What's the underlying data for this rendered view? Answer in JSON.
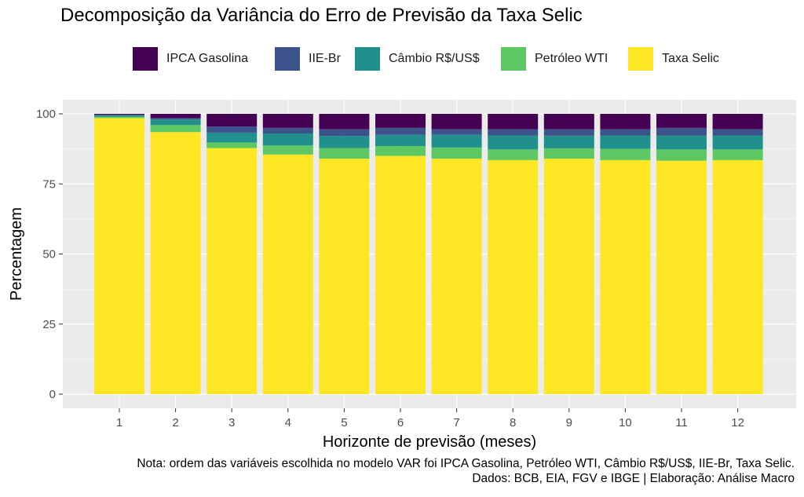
{
  "colors": {
    "IPCA Gasolina": "#440154",
    "IIE-Br": "#3B528B",
    "Câmbio R$/US$": "#21908C",
    "Petróleo WTI": "#5DC863",
    "Taxa Selic": "#FDE725",
    "panel_background": "#EBEBEB",
    "gridline": "#FFFFFF"
  },
  "caption": {
    "line1": "Nota: ordem das variáveis escolhida no modelo VAR foi IPCA Gasolina, Petróleo WTI, Câmbio R$/US$, IIE-Br, Taxa Selic.",
    "line2": "Dados: BCB, EIA, FGV e IBGE | Elaboração: Análise Macro"
  },
  "chart_data": {
    "type": "bar",
    "stacked": true,
    "title": "Decomposição da Variância do Erro de Previsão da Taxa Selic",
    "xlabel": "Horizonte de previsão (meses)",
    "ylabel": "Percentagem",
    "categories": [
      "1",
      "2",
      "3",
      "4",
      "5",
      "6",
      "7",
      "8",
      "9",
      "10",
      "11",
      "12"
    ],
    "ylim": [
      0,
      100
    ],
    "yticks": [
      0,
      25,
      50,
      75,
      100
    ],
    "grid": true,
    "legend_position": "top",
    "legend": [
      "IPCA Gasolina",
      "IIE-Br",
      "Câmbio R$/US$",
      "Petróleo WTI",
      "Taxa Selic"
    ],
    "series": [
      {
        "name": "Taxa Selic",
        "values": [
          98.5,
          93.5,
          87.8,
          85.5,
          84.0,
          85.0,
          84.0,
          83.5,
          84.0,
          83.5,
          83.3,
          83.5
        ]
      },
      {
        "name": "Petróleo WTI",
        "values": [
          0.5,
          2.5,
          2.0,
          3.2,
          3.8,
          3.5,
          4.0,
          3.8,
          3.7,
          4.0,
          4.0,
          3.8
        ]
      },
      {
        "name": "Câmbio R$/US$",
        "values": [
          0.5,
          2.0,
          3.5,
          4.3,
          4.3,
          4.0,
          4.5,
          5.0,
          4.5,
          4.8,
          5.0,
          5.0
        ]
      },
      {
        "name": "IIE-Br",
        "values": [
          0.2,
          0.5,
          2.2,
          2.0,
          2.4,
          2.5,
          2.0,
          2.2,
          2.3,
          2.2,
          2.7,
          2.2
        ]
      },
      {
        "name": "IPCA Gasolina",
        "values": [
          0.3,
          1.5,
          4.5,
          5.0,
          5.5,
          5.0,
          5.5,
          5.5,
          5.5,
          5.5,
          5.0,
          5.5
        ]
      }
    ]
  }
}
